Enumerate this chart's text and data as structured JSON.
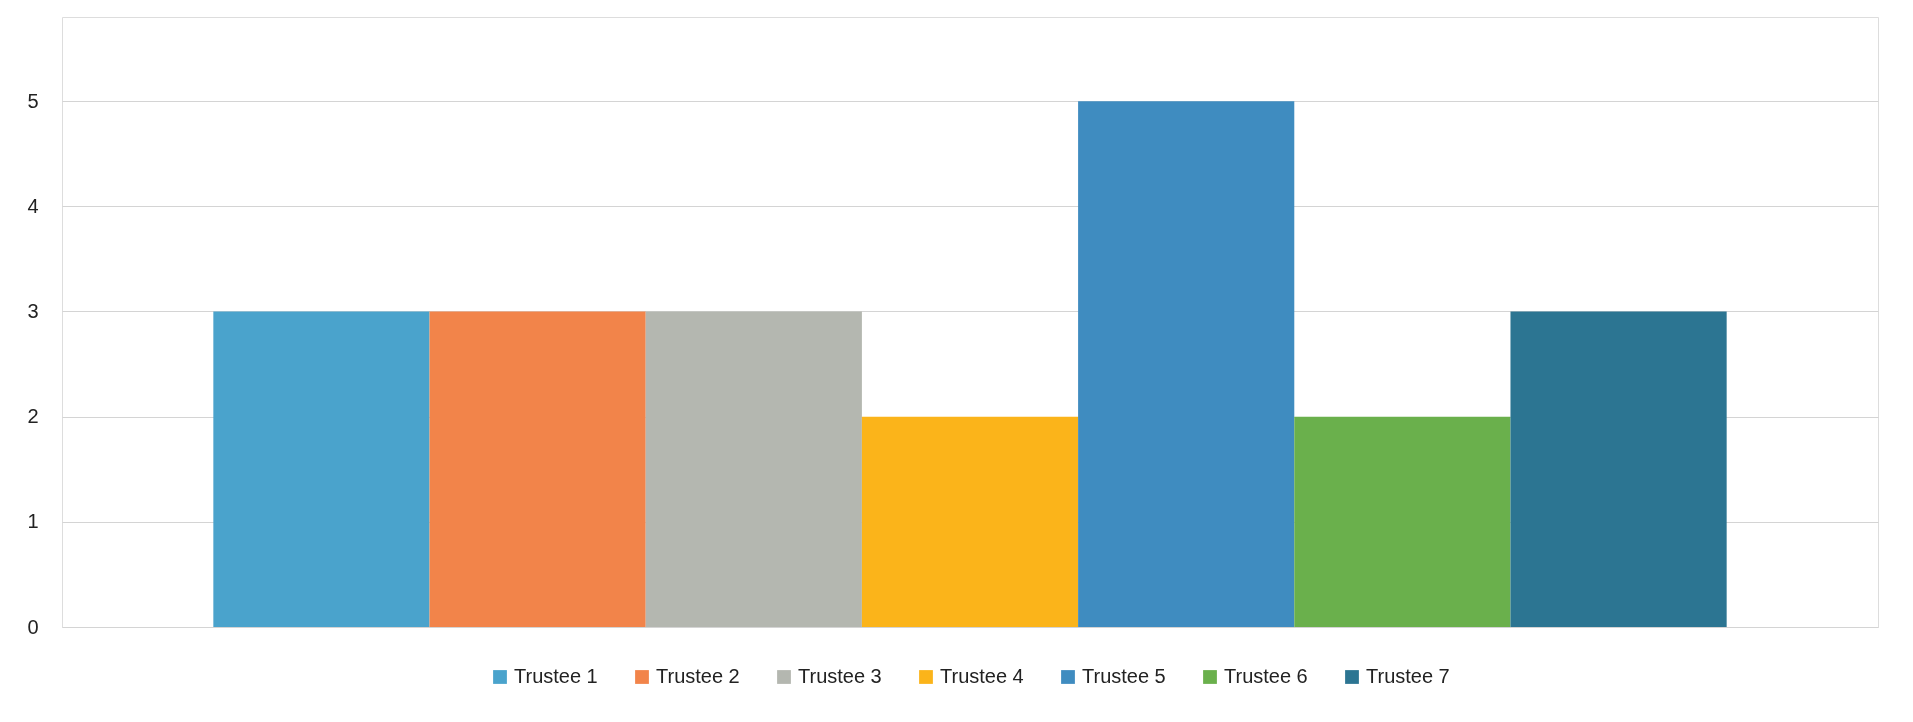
{
  "chart_data": {
    "type": "bar",
    "categories": [
      null
    ],
    "series": [
      {
        "name": "Trustee 1",
        "color": "#4aa3cc",
        "values": [
          3
        ]
      },
      {
        "name": "Trustee 2",
        "color": "#f2844a",
        "values": [
          3
        ]
      },
      {
        "name": "Trustee 3",
        "color": "#b4b7b0",
        "values": [
          3
        ]
      },
      {
        "name": "Trustee 4",
        "color": "#fbb41a",
        "values": [
          2
        ]
      },
      {
        "name": "Trustee 5",
        "color": "#3f8cc0",
        "values": [
          5
        ]
      },
      {
        "name": "Trustee 6",
        "color": "#6ab04c",
        "values": [
          2
        ]
      },
      {
        "name": "Trustee 7",
        "color": "#2c7592",
        "values": [
          3
        ]
      }
    ],
    "ylim": [
      0,
      5.8
    ],
    "yticks": [
      0,
      1,
      2,
      3,
      4,
      5
    ],
    "grid": "y",
    "legend": "bottom"
  }
}
